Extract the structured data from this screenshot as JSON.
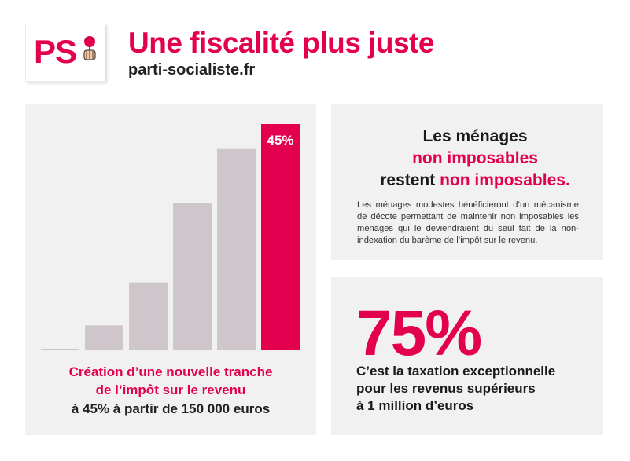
{
  "header": {
    "logo_text": "PS",
    "title": "Une fiscalité plus juste",
    "subtitle": "parti-socialiste.fr"
  },
  "chart_data": {
    "type": "bar",
    "categories": [
      "",
      "",
      "",
      "",
      "",
      ""
    ],
    "values": [
      0.5,
      11,
      30,
      65,
      89,
      100
    ],
    "highlight_index": 5,
    "data_labels": [
      "",
      "",
      "",
      "",
      "",
      "45%"
    ],
    "bar_color": "#cfc6cc",
    "highlight_color": "#e2004f",
    "grid": false
  },
  "chart_caption": {
    "line1": "Création d’une nouvelle tranche",
    "line2": "de l’impôt sur le revenu",
    "line3": "à 45% à partir de 150 000 euros"
  },
  "menages": {
    "heading_line1": "Les ménages",
    "heading_line2": "non imposables",
    "heading_line3a": "restent ",
    "heading_line3b": "non imposables.",
    "body": "Les ménages modestes bénéficieront d’un mécanisme de décote permettant de maintenir non imposables les ménages qui le deviendraient du seul fait de la non-indexation du barème de l’impôt sur le revenu."
  },
  "tax": {
    "percent": "75%",
    "line1": "C’est la taxation exceptionnelle",
    "line2": "pour les revenus supérieurs",
    "line3": "à 1 million d’euros"
  },
  "colors": {
    "brand": "#e2004f",
    "panel": "#f1f1f1",
    "text": "#1a1a1a"
  }
}
